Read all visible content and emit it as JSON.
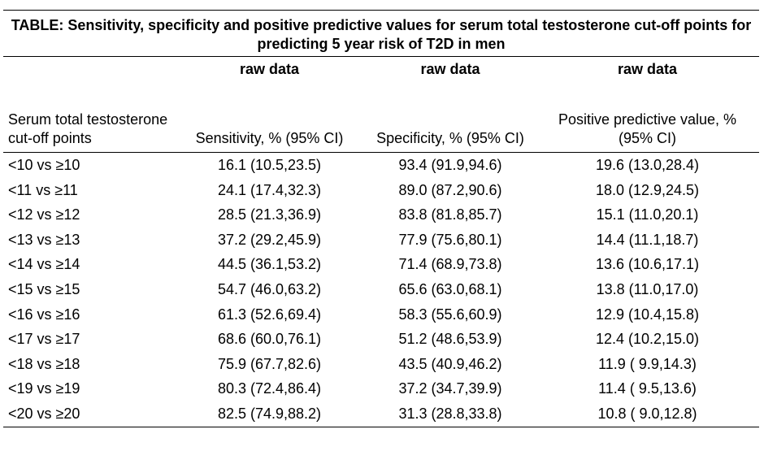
{
  "table": {
    "title": "TABLE: Sensitivity, specificity and positive predictive values for serum total testosterone cut-off points for predicting 5 year risk of T2D in men",
    "group_labels": [
      "raw data",
      "raw data",
      "raw data"
    ],
    "column_headers": [
      "Serum total testosterone cut-off points",
      "Sensitivity, % (95% CI)",
      "Specificity, % (95% CI)",
      "Positive predictive value, % (95% CI)"
    ],
    "rows": [
      [
        "<10 vs ≥10",
        "16.1 (10.5,23.5)",
        "93.4 (91.9,94.6)",
        "19.6 (13.0,28.4)"
      ],
      [
        "<11 vs ≥11",
        "24.1 (17.4,32.3)",
        "89.0 (87.2,90.6)",
        "18.0 (12.9,24.5)"
      ],
      [
        "<12 vs ≥12",
        "28.5 (21.3,36.9)",
        "83.8 (81.8,85.7)",
        "15.1 (11.0,20.1)"
      ],
      [
        "<13 vs ≥13",
        "37.2 (29.2,45.9)",
        "77.9 (75.6,80.1)",
        "14.4 (11.1,18.7)"
      ],
      [
        "<14 vs ≥14",
        "44.5 (36.1,53.2)",
        "71.4 (68.9,73.8)",
        "13.6 (10.6,17.1)"
      ],
      [
        "<15 vs ≥15",
        "54.7 (46.0,63.2)",
        "65.6 (63.0,68.1)",
        "13.8 (11.0,17.0)"
      ],
      [
        "<16 vs ≥16",
        "61.3 (52.6,69.4)",
        "58.3 (55.6,60.9)",
        "12.9 (10.4,15.8)"
      ],
      [
        "<17 vs ≥17",
        "68.6 (60.0,76.1)",
        "51.2 (48.6,53.9)",
        "12.4 (10.2,15.0)"
      ],
      [
        "<18 vs ≥18",
        "75.9 (67.7,82.6)",
        "43.5 (40.9,46.2)",
        "11.9 ( 9.9,14.3)"
      ],
      [
        "<19 vs ≥19",
        "80.3 (72.4,86.4)",
        "37.2 (34.7,39.9)",
        "11.4 ( 9.5,13.6)"
      ],
      [
        "<20 vs ≥20",
        "82.5 (74.9,88.2)",
        "31.3 (28.8,33.8)",
        "10.8 ( 9.0,12.8)"
      ]
    ]
  }
}
